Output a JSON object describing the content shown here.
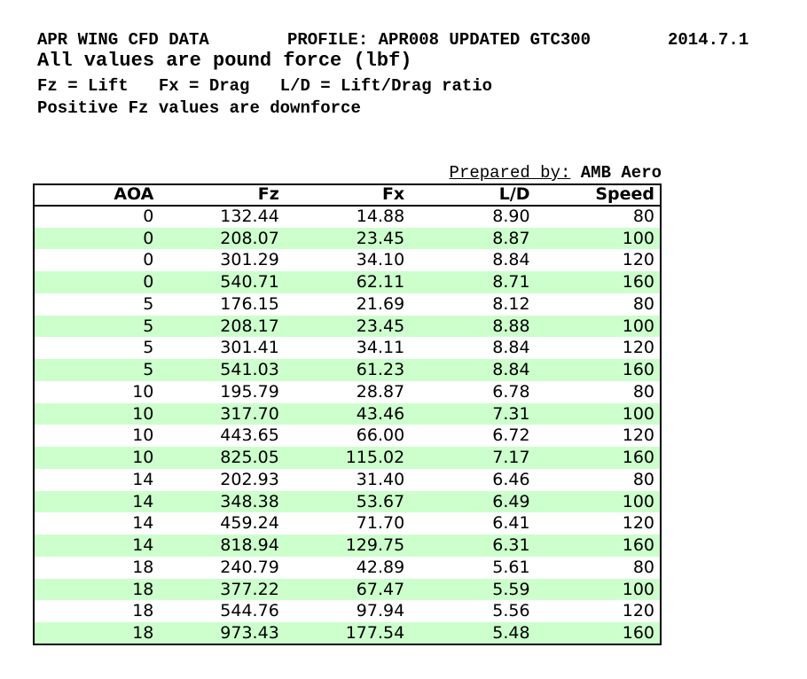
{
  "header": {
    "title": "APR WING CFD DATA",
    "profile": "PROFILE: APR008 UPDATED GTC300",
    "date": "2014.7.1",
    "subtitle": "All values are pound force (lbf)",
    "legend": "Fz = Lift   Fx = Drag   L/D = Lift/Drag ratio",
    "note": "Positive Fz values are downforce"
  },
  "prepared_by": {
    "label": "Prepared by:",
    "value": "AMB Aero"
  },
  "colors": {
    "row_alt": "#ccffcc",
    "border": "#000000",
    "text": "#000000"
  },
  "table": {
    "columns": [
      "AOA",
      "Fz",
      "Fx",
      "L/D",
      "Speed"
    ],
    "rows": [
      [
        "0",
        "132.44",
        "14.88",
        "8.90",
        "80"
      ],
      [
        "0",
        "208.07",
        "23.45",
        "8.87",
        "100"
      ],
      [
        "0",
        "301.29",
        "34.10",
        "8.84",
        "120"
      ],
      [
        "0",
        "540.71",
        "62.11",
        "8.71",
        "160"
      ],
      [
        "5",
        "176.15",
        "21.69",
        "8.12",
        "80"
      ],
      [
        "5",
        "208.17",
        "23.45",
        "8.88",
        "100"
      ],
      [
        "5",
        "301.41",
        "34.11",
        "8.84",
        "120"
      ],
      [
        "5",
        "541.03",
        "61.23",
        "8.84",
        "160"
      ],
      [
        "10",
        "195.79",
        "28.87",
        "6.78",
        "80"
      ],
      [
        "10",
        "317.70",
        "43.46",
        "7.31",
        "100"
      ],
      [
        "10",
        "443.65",
        "66.00",
        "6.72",
        "120"
      ],
      [
        "10",
        "825.05",
        "115.02",
        "7.17",
        "160"
      ],
      [
        "14",
        "202.93",
        "31.40",
        "6.46",
        "80"
      ],
      [
        "14",
        "348.38",
        "53.67",
        "6.49",
        "100"
      ],
      [
        "14",
        "459.24",
        "71.70",
        "6.41",
        "120"
      ],
      [
        "14",
        "818.94",
        "129.75",
        "6.31",
        "160"
      ],
      [
        "18",
        "240.79",
        "42.89",
        "5.61",
        "80"
      ],
      [
        "18",
        "377.22",
        "67.47",
        "5.59",
        "100"
      ],
      [
        "18",
        "544.76",
        "97.94",
        "5.56",
        "120"
      ],
      [
        "18",
        "973.43",
        "177.54",
        "5.48",
        "160"
      ]
    ]
  }
}
